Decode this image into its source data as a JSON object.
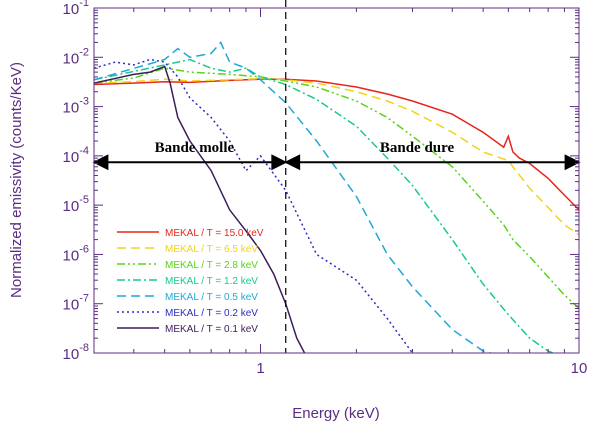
{
  "chart_data": {
    "type": "line",
    "xlabel": "Energy (keV)",
    "ylabel": "Normalized emissivity (counts/KeV)",
    "xscale": "log",
    "yscale": "log",
    "xlim": [
      0.3,
      10
    ],
    "ylim": [
      1e-08,
      0.1
    ],
    "x_tick_labels": [
      {
        "value": 1,
        "label": "1"
      },
      {
        "value": 10,
        "label": "10"
      }
    ],
    "y_tick_labels": [
      {
        "value": 0.1,
        "mant": "10",
        "exp": "-1"
      },
      {
        "value": 0.01,
        "mant": "10",
        "exp": "-2"
      },
      {
        "value": 0.001,
        "mant": "10",
        "exp": "-3"
      },
      {
        "value": 0.0001,
        "mant": "10",
        "exp": "-4"
      },
      {
        "value": 1e-05,
        "mant": "10",
        "exp": "-5"
      },
      {
        "value": 1e-06,
        "mant": "10",
        "exp": "-6"
      },
      {
        "value": 1e-07,
        "mant": "10",
        "exp": "-7"
      },
      {
        "value": 1e-08,
        "mant": "10",
        "exp": "-8"
      }
    ],
    "divider_x": 1.2,
    "annotations": [
      {
        "text": "Bande molle",
        "x": 0.62,
        "y": 0.00012,
        "arrow": [
          0.3,
          1.2
        ],
        "arrow_y": 7.41e-05
      },
      {
        "text": "Bande dure",
        "x": 3.1,
        "y": 0.00012,
        "arrow": [
          1.2,
          10
        ],
        "arrow_y": 7.41e-05
      }
    ],
    "legend_position": "lower-left",
    "series": [
      {
        "name": "MEKAL / T = 15.0 keV",
        "color": "#e8261c",
        "dash": "",
        "x": [
          0.3,
          0.4,
          0.5,
          0.6,
          0.8,
          1.0,
          1.2,
          1.5,
          2.0,
          2.5,
          3.0,
          4.0,
          5.0,
          5.8,
          6.0,
          6.2,
          6.5,
          7.0,
          8.0,
          9.0,
          10.0
        ],
        "y": [
          0.0028,
          0.003,
          0.0032,
          0.0031,
          0.0034,
          0.0036,
          0.0036,
          0.0033,
          0.0025,
          0.0018,
          0.0013,
          0.0007,
          0.0003,
          0.00015,
          0.00025,
          0.00012,
          9e-05,
          7e-05,
          3.5e-05,
          1.6e-05,
          8e-06
        ]
      },
      {
        "name": "MEKAL / T = 6.5 keV",
        "color": "#f2d21b",
        "dash": "9,5",
        "x": [
          0.3,
          0.4,
          0.5,
          0.6,
          0.8,
          1.0,
          1.2,
          1.5,
          2.0,
          2.5,
          3.0,
          4.0,
          5.0,
          6.0,
          6.2,
          7.0,
          8.0,
          9.0,
          10.0
        ],
        "y": [
          0.003,
          0.0032,
          0.0036,
          0.0033,
          0.0035,
          0.0037,
          0.0035,
          0.003,
          0.002,
          0.0013,
          0.0008,
          0.0003,
          0.00012,
          8e-05,
          6e-05,
          2.2e-05,
          9e-06,
          4e-06,
          2.5e-06
        ]
      },
      {
        "name": "MEKAL / T = 2.8 keV",
        "color": "#57d419",
        "dash": "8,3,2,3,2,3",
        "x": [
          0.3,
          0.4,
          0.5,
          0.55,
          0.6,
          0.8,
          1.0,
          1.2,
          1.5,
          2.0,
          2.5,
          3.0,
          4.0,
          5.0,
          5.8,
          6.2,
          7.0,
          8.0,
          9.0,
          10.0
        ],
        "y": [
          0.003,
          0.0038,
          0.006,
          0.0055,
          0.005,
          0.0045,
          0.004,
          0.0033,
          0.0025,
          0.0013,
          0.0006,
          0.00025,
          6e-05,
          1.2e-05,
          4e-06,
          2e-06,
          9e-07,
          3.5e-07,
          1.5e-07,
          8e-08
        ]
      },
      {
        "name": "MEKAL / T = 1.2 keV",
        "color": "#18c98f",
        "dash": "8,3,2,3",
        "x": [
          0.3,
          0.5,
          0.6,
          0.7,
          0.8,
          0.9,
          1.0,
          1.2,
          1.5,
          2.0,
          2.5,
          3.0,
          4.0,
          5.0,
          6.0,
          7.0,
          8.0,
          9.0
        ],
        "y": [
          0.0035,
          0.007,
          0.009,
          0.006,
          0.005,
          0.006,
          0.004,
          0.0028,
          0.0014,
          0.0004,
          9e-05,
          2.5e-05,
          2e-06,
          2.5e-07,
          6e-08,
          2e-08,
          1.1e-08,
          8e-09
        ]
      },
      {
        "name": "MEKAL / T = 0.5 keV",
        "color": "#1fa8d8",
        "dash": "9,5",
        "x": [
          0.3,
          0.5,
          0.55,
          0.6,
          0.7,
          0.75,
          0.8,
          0.9,
          1.0,
          1.2,
          1.5,
          2.0,
          2.5,
          3.0,
          4.0,
          5.0,
          6.0
        ],
        "y": [
          0.0035,
          0.009,
          0.015,
          0.01,
          0.012,
          0.02,
          0.008,
          0.006,
          0.0035,
          0.0012,
          0.0002,
          1.5e-05,
          1e-06,
          2.2e-07,
          3e-08,
          1.1e-08,
          8e-09
        ]
      },
      {
        "name": "MEKAL / T = 0.2 keV",
        "color": "#2a2fc0",
        "dash": "2,3",
        "x": [
          0.3,
          0.35,
          0.4,
          0.45,
          0.5,
          0.55,
          0.6,
          0.7,
          0.8,
          0.9,
          1.0,
          1.2,
          1.5,
          2.0,
          2.5,
          3.0,
          3.5
        ],
        "y": [
          0.006,
          0.008,
          0.007,
          0.009,
          0.008,
          0.004,
          0.0015,
          0.0006,
          0.0002,
          5e-05,
          0.0001,
          2e-05,
          1e-06,
          3e-07,
          5e-08,
          1e-08,
          7e-09
        ]
      },
      {
        "name": "MEKAL / T = 0.1 keV",
        "color": "#3b1d5c",
        "dash": "",
        "x": [
          0.3,
          0.4,
          0.45,
          0.5,
          0.52,
          0.55,
          0.6,
          0.7,
          0.8,
          0.9,
          1.0,
          1.1,
          1.2,
          1.3,
          1.4
        ],
        "y": [
          0.003,
          0.0045,
          0.005,
          0.0065,
          0.003,
          0.0006,
          0.0002,
          5e-05,
          8e-06,
          3e-06,
          1.2e-06,
          4e-07,
          1e-07,
          2e-08,
          8e-09
        ]
      }
    ]
  }
}
